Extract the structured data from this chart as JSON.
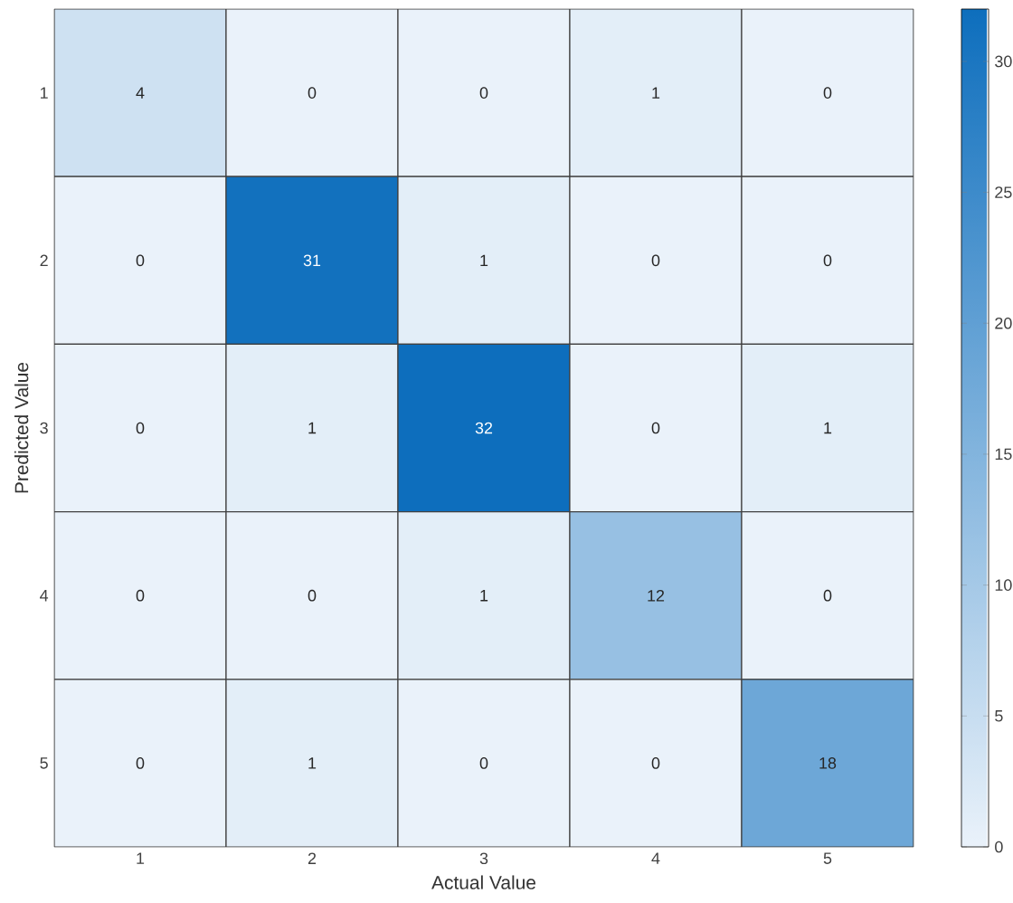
{
  "chart_data": {
    "type": "heatmap",
    "xlabel": "Actual Value",
    "ylabel": "Predicted Value",
    "categories": [
      "1",
      "2",
      "3",
      "4",
      "5"
    ],
    "y_categories": [
      "1",
      "2",
      "3",
      "4",
      "5"
    ],
    "cells": [
      [
        4,
        0,
        0,
        1,
        0
      ],
      [
        0,
        31,
        1,
        0,
        0
      ],
      [
        0,
        1,
        32,
        0,
        1
      ],
      [
        0,
        0,
        1,
        12,
        0
      ],
      [
        0,
        1,
        0,
        0,
        18
      ]
    ],
    "clim": [
      0,
      32
    ],
    "cticks": [
      0,
      5,
      10,
      15,
      20,
      25,
      30
    ],
    "data_labels": true
  }
}
